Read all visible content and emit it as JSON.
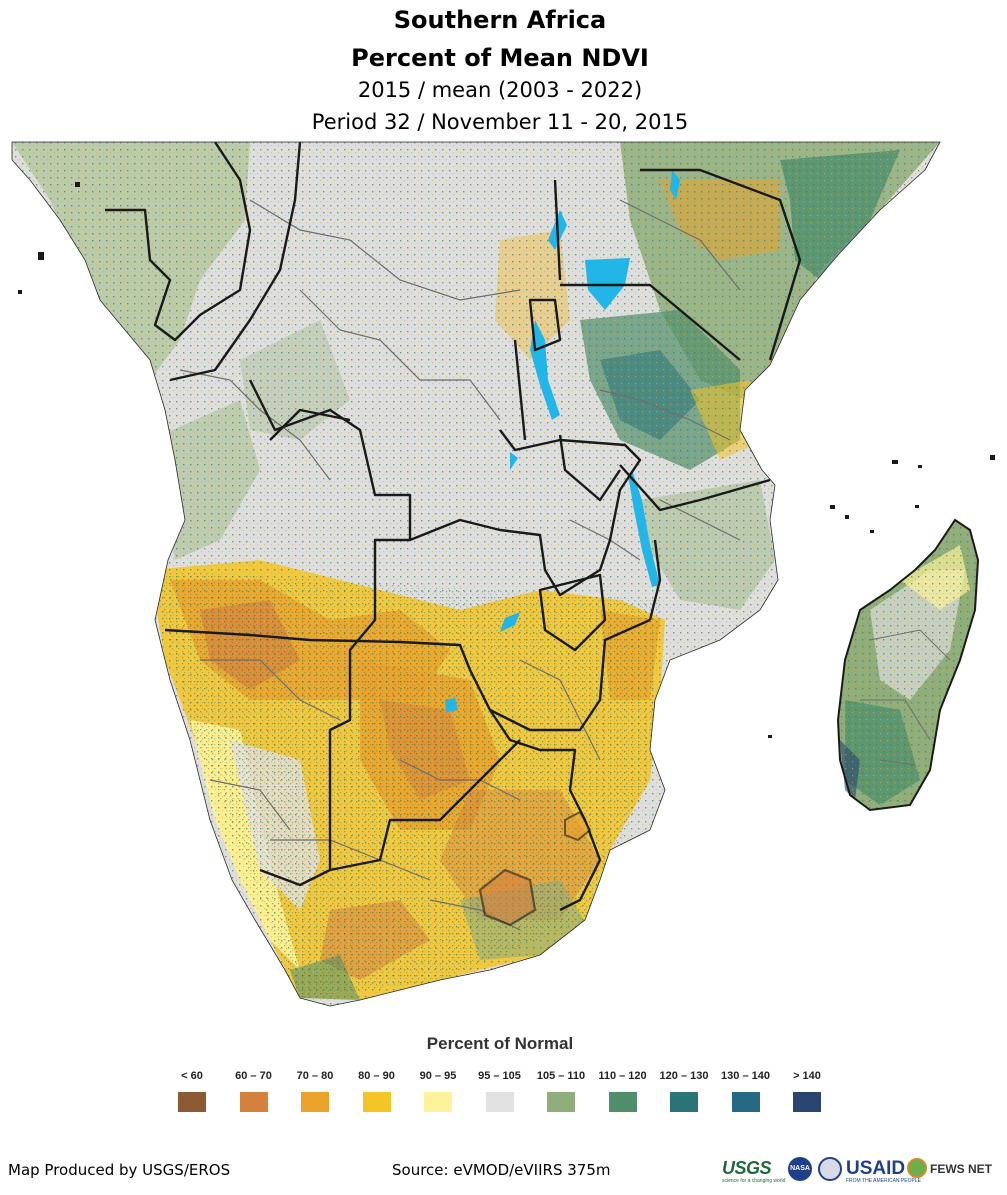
{
  "header": {
    "region": "Southern Africa",
    "product": "Percent of Mean NDVI",
    "comparison": "2015 / mean (2003 - 2022)",
    "period": "Period 32 / November 11 - 20, 2015"
  },
  "legend": {
    "title": "Percent of Normal",
    "classes": [
      {
        "label": "< 60",
        "color": "#8c5a32"
      },
      {
        "label": "60 – 70",
        "color": "#d4813e"
      },
      {
        "label": "70 – 80",
        "color": "#eaa22b"
      },
      {
        "label": "80 – 90",
        "color": "#f4c526"
      },
      {
        "label": "90 – 95",
        "color": "#fbf29a"
      },
      {
        "label": "95 – 105",
        "color": "#e1e1e1"
      },
      {
        "label": "105 – 110",
        "color": "#8fae7b"
      },
      {
        "label": "110 – 120",
        "color": "#4e8e6b"
      },
      {
        "label": "120 – 130",
        "color": "#2a7378"
      },
      {
        "label": "130 – 140",
        "color": "#256a82"
      },
      {
        "label": "> 140",
        "color": "#2a4470"
      }
    ]
  },
  "footer": {
    "producer": "Map Produced by USGS/EROS",
    "source": "Source: eVMOD/eVIIRS 375m"
  },
  "logos": {
    "usgs": "USGS",
    "usgs_tagline": "science for a changing world",
    "nasa": "NASA",
    "usaid": "USAID",
    "usaid_tagline": "FROM THE AMERICAN PEOPLE",
    "fewsnet": "FEWS NET"
  },
  "colors": {
    "water": "#22b6e8",
    "border_national": "#1a1a1a",
    "border_admin": "#6e6e6e",
    "ocean": "#ffffff"
  }
}
